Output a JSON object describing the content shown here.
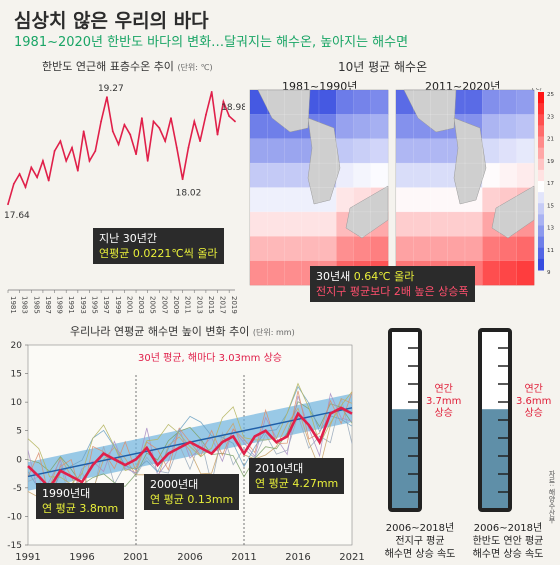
{
  "header": {
    "title": "심상치 않은 우리의 바다",
    "subtitle": "1981~2020년 한반도 바다의 변화…달궈지는 해수온, 높아지는 해수면"
  },
  "sst_chart": {
    "title": "한반도 연근해 표층수온 추이",
    "unit": "(단위: ℃)",
    "callout_line1": "지난 30년간",
    "callout_line2": "연평균 0.0221℃씩 올라"
  },
  "map_panel": {
    "title": "10년 평균 해수온",
    "left_label": "1981~1990년",
    "right_label": "2011~2020년",
    "colorbar_unit": "(℃)",
    "colorbar_ticks": [
      "25",
      "23",
      "21",
      "19",
      "17",
      "15",
      "13",
      "11",
      "9"
    ],
    "callout_line1": "30년새 ",
    "callout_value": "0.64℃ 올라",
    "callout_line2": "전지구 평균보다 2배 높은 상승폭"
  },
  "sea_level_chart": {
    "title": "우리나라 연평균 해수면 높이 변화 추이",
    "unit": "(단위: mm)",
    "annotation": "30년 평균, 해마다 3.03mm 상승",
    "box_1990_title": "1990년대",
    "box_1990_value": "연 평균 3.8mm",
    "box_2000_title": "2000년대",
    "box_2000_value": "연 평균 0.13mm",
    "box_2010_title": "2010년대",
    "box_2010_value": "연 평균 4.27mm"
  },
  "cylinders": {
    "left_note_line1": "연간",
    "left_note_line2": "3.7mm",
    "left_note_line3": "상승",
    "left_caption_line1": "2006~2018년",
    "left_caption_line2": "전지구 평균",
    "left_caption_line3": "해수면 상승 속도",
    "right_note_line1": "연간",
    "right_note_line2": "3.6mm",
    "right_note_line3": "상승",
    "right_caption_line1": "2006~2018년",
    "right_caption_line2": "한반도 연안 평균",
    "right_caption_line3": "해수면 상승 속도",
    "left_level": 0.56,
    "right_level": 0.56
  },
  "source": "자료: 해양수산부",
  "chart_data": [
    {
      "type": "line",
      "title": "한반도 연근해 표층수온 추이",
      "x": [
        1981,
        1982,
        1983,
        1984,
        1985,
        1986,
        1987,
        1988,
        1989,
        1990,
        1991,
        1992,
        1993,
        1994,
        1995,
        1996,
        1997,
        1998,
        1999,
        2000,
        2001,
        2002,
        2003,
        2004,
        2005,
        2006,
        2007,
        2008,
        2009,
        2010,
        2011,
        2012,
        2013,
        2014,
        2015,
        2016,
        2017,
        2018,
        2019,
        2020
      ],
      "x_tick_labels": [
        "1981",
        "1983",
        "1985",
        "1987",
        "1989",
        "1991",
        "1993",
        "1995",
        "1997",
        "1999",
        "2001",
        "2003",
        "2005",
        "2007",
        "2009",
        "2011",
        "2013",
        "2015",
        "2017",
        "2019"
      ],
      "series": [
        {
          "values": [
            17.64,
            17.95,
            18.1,
            17.9,
            18.2,
            18.05,
            18.3,
            18.0,
            18.45,
            18.6,
            18.3,
            18.5,
            18.15,
            18.75,
            18.3,
            18.45,
            18.9,
            19.27,
            18.75,
            18.55,
            18.85,
            18.7,
            18.4,
            18.95,
            18.3,
            18.9,
            18.8,
            18.6,
            18.95,
            18.5,
            18.02,
            18.5,
            18.9,
            18.6,
            19.0,
            19.35,
            18.7,
            19.2,
            18.98,
            18.9
          ]
        }
      ],
      "data_labels": {
        "17.64": "1981",
        "19.27": "1998",
        "18.02": "2011",
        "18.98": "2019"
      },
      "ylabel": "",
      "grid": false
    },
    {
      "type": "heatmap",
      "title": "10년 평균 해수온",
      "panels": [
        "1981~1990년",
        "2011~2020년"
      ],
      "colorbar_range": [
        9,
        25
      ],
      "left_values": [
        [
          "11.7",
          "12.4",
          "",
          "",
          "",
          "",
          "",
          ""
        ],
        [
          "12.9",
          "",
          "13.8",
          "",
          "",
          "",
          "",
          ""
        ],
        [
          "13.3",
          "15.1",
          "",
          "",
          "",
          "",
          "",
          ""
        ],
        [
          "15.1",
          "16.1",
          "15.0",
          "",
          "",
          "",
          ""
        ],
        [
          "17.0",
          "16.5",
          "16.1",
          "15.2",
          "",
          "",
          ""
        ],
        [
          "16.5",
          "18.3",
          "16.4",
          "16.1",
          "",
          "",
          ""
        ],
        [
          "19.5",
          "19.5",
          "18.1",
          "18.9",
          "",
          "",
          ""
        ],
        [
          "21.7",
          "21.5",
          "20.0",
          "19.1",
          "",
          "",
          ""
        ]
      ],
      "right_values": [
        [
          "12.0",
          "12.8",
          "",
          "",
          "",
          "",
          "",
          ""
        ],
        [
          "13.6",
          "",
          "14.5",
          "",
          "",
          "",
          "",
          ""
        ],
        [
          "14.2",
          "15.9",
          "",
          "",
          "",
          "",
          "",
          ""
        ],
        [
          "15.9",
          "16.8",
          "15.7",
          "",
          "",
          "",
          ""
        ],
        [
          "17.7",
          "17.3",
          "16.7",
          "15.8",
          "",
          "",
          ""
        ],
        [
          "17.2",
          "18.9",
          "17.1",
          "16.8",
          "",
          "",
          ""
        ],
        [
          "20.1",
          "20.1",
          "18.8",
          "19.7",
          "",
          "",
          ""
        ],
        [
          "22.3",
          "22.2",
          "20.6",
          "19.9",
          "",
          "",
          ""
        ]
      ]
    },
    {
      "type": "line",
      "title": "우리나라 연평균 해수면 높이 변화 추이",
      "x": [
        1991,
        1992,
        1993,
        1994,
        1995,
        1996,
        1997,
        1998,
        1999,
        2000,
        2001,
        2002,
        2003,
        2004,
        2005,
        2006,
        2007,
        2008,
        2009,
        2010,
        2011,
        2012,
        2013,
        2014,
        2015,
        2016,
        2017,
        2018,
        2019,
        2020,
        2021
      ],
      "x_tick_labels": [
        "1991",
        "1996",
        "2001",
        "2006",
        "2011",
        "2016",
        "2021"
      ],
      "ylim": [
        -15,
        20
      ],
      "y_ticks": [
        -15,
        -10,
        -5,
        0,
        5,
        10,
        15,
        20
      ],
      "trend": {
        "start": -3,
        "end": 9
      },
      "series": [
        {
          "values": [
            -1.2,
            -3,
            -5,
            -2,
            -3,
            -4,
            -1,
            1,
            0,
            -1,
            0,
            2,
            -1,
            1,
            2,
            3,
            2,
            1,
            3,
            4,
            1,
            4,
            5,
            3,
            4,
            8,
            6,
            3,
            8,
            9,
            8
          ]
        }
      ]
    }
  ]
}
